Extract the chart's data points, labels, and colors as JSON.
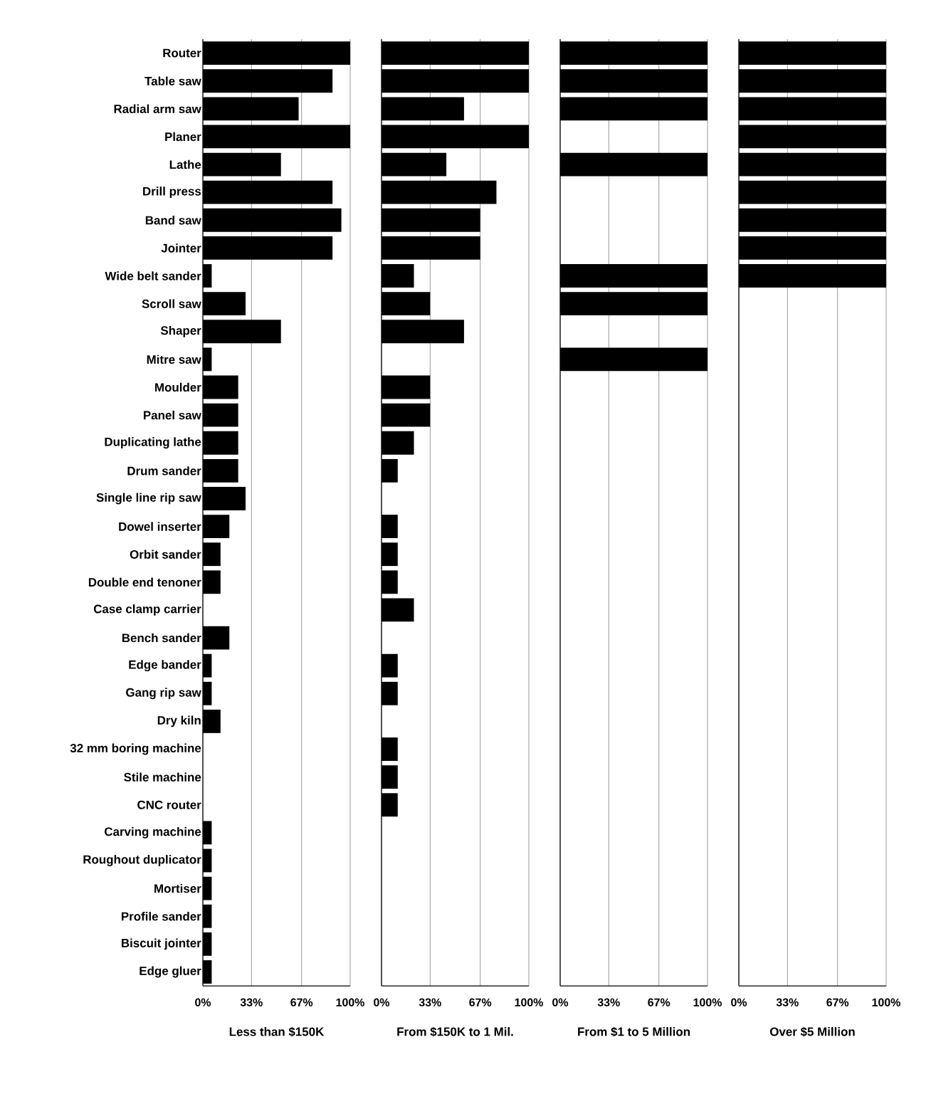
{
  "chart_data": [
    {
      "type": "bar",
      "orientation": "horizontal",
      "xlabel": "Less than $150K",
      "color": "#000000",
      "grid": "x",
      "categories": [
        "Router",
        "Table saw",
        "Radial arm saw",
        "Planer",
        "Lathe",
        "Drill press",
        "Band saw",
        "Jointer",
        "Wide belt sander",
        "Scroll saw",
        "Shaper",
        "Mitre saw",
        "Moulder",
        "Panel saw",
        "Duplicating lathe",
        "Drum sander",
        "Single line rip saw",
        "Dowel inserter",
        "Orbit sander",
        "Double end tenoner",
        "Case clamp carrier",
        "Bench sander",
        "Edge bander",
        "Gang rip saw",
        "Dry kiln",
        "32 mm boring machine",
        "Stile machine",
        "CNC router",
        "Carving machine",
        "Roughout duplicator",
        "Mortiser",
        "Profile sander",
        "Biscuit jointer",
        "Edge gluer"
      ],
      "values": [
        100,
        88,
        65,
        100,
        53,
        88,
        94,
        88,
        6,
        29,
        53,
        6,
        24,
        24,
        24,
        24,
        29,
        18,
        12,
        12,
        0,
        18,
        6,
        6,
        12,
        0,
        0,
        0,
        6,
        6,
        6,
        6,
        6,
        6
      ],
      "xlim": [
        0,
        100
      ],
      "xticks": [
        {
          "value": 0,
          "label": "0%"
        },
        {
          "value": 33,
          "label": "33%"
        },
        {
          "value": 67,
          "label": "67%"
        },
        {
          "value": 100,
          "label": "100%"
        }
      ]
    },
    {
      "type": "bar",
      "orientation": "horizontal",
      "xlabel": "From $150K to 1 Mil.",
      "color": "#000000",
      "grid": "x",
      "tick_labels": "x",
      "categories": [
        null,
        null,
        null,
        null,
        null,
        null,
        null,
        null,
        null,
        null,
        null,
        null,
        null,
        null,
        null,
        null,
        null,
        null,
        null,
        null,
        null,
        null,
        null,
        null,
        null,
        null,
        null,
        null,
        null,
        null,
        null,
        null,
        null,
        null
      ],
      "values": [
        100,
        100,
        56,
        100,
        44,
        78,
        67,
        67,
        22,
        33,
        56,
        0,
        33,
        33,
        22,
        11,
        0,
        11,
        11,
        11,
        22,
        0,
        11,
        11,
        0,
        11,
        11,
        11,
        0,
        0,
        0,
        0,
        0,
        0
      ],
      "xlim": [
        0,
        100
      ],
      "xticks": [
        {
          "value": 0,
          "label": "0%"
        },
        {
          "value": 33,
          "label": "33%"
        },
        {
          "value": 67,
          "label": "67%"
        },
        {
          "value": 100,
          "label": "100%"
        }
      ]
    },
    {
      "type": "bar",
      "orientation": "horizontal",
      "xlabel": "From $1 to 5 Million",
      "color": "#000000",
      "grid": "x",
      "tick_labels": "x",
      "categories": [
        null,
        null,
        null,
        null,
        null,
        null,
        null,
        null,
        null,
        null,
        null,
        null,
        null,
        null,
        null,
        null,
        null,
        null,
        null,
        null,
        null,
        null,
        null,
        null,
        null,
        null,
        null,
        null,
        null,
        null,
        null,
        null,
        null,
        null
      ],
      "values": [
        100,
        100,
        100,
        0,
        100,
        0,
        0,
        0,
        100,
        100,
        0,
        100,
        0,
        0,
        0,
        0,
        0,
        0,
        0,
        0,
        0,
        0,
        0,
        0,
        0,
        0,
        0,
        0,
        0,
        0,
        0,
        0,
        0,
        0
      ],
      "xlim": [
        0,
        100
      ],
      "xticks": [
        {
          "value": 0,
          "label": "0%"
        },
        {
          "value": 33,
          "label": "33%"
        },
        {
          "value": 67,
          "label": "67%"
        },
        {
          "value": 100,
          "label": "100%"
        }
      ]
    },
    {
      "type": "bar",
      "orientation": "horizontal",
      "xlabel": "Over $5 Million",
      "color": "#000000",
      "grid": "x",
      "tick_labels": "x",
      "categories": [
        null,
        null,
        null,
        null,
        null,
        null,
        null,
        null,
        null,
        null,
        null,
        null,
        null,
        null,
        null,
        null,
        null,
        null,
        null,
        null,
        null,
        null,
        null,
        null,
        null,
        null,
        null,
        null,
        null,
        null,
        null,
        null,
        null,
        null
      ],
      "values": [
        100,
        100,
        100,
        100,
        100,
        100,
        100,
        100,
        100,
        0,
        0,
        0,
        0,
        0,
        0,
        0,
        0,
        0,
        0,
        0,
        0,
        0,
        0,
        0,
        0,
        0,
        0,
        0,
        0,
        0,
        0,
        0,
        0,
        0
      ],
      "xlim": [
        0,
        100
      ],
      "xticks": [
        {
          "value": 0,
          "label": "0%"
        },
        {
          "value": 33,
          "label": "33%"
        },
        {
          "value": 67,
          "label": "67%"
        },
        {
          "value": 100,
          "label": "100%"
        }
      ]
    }
  ]
}
